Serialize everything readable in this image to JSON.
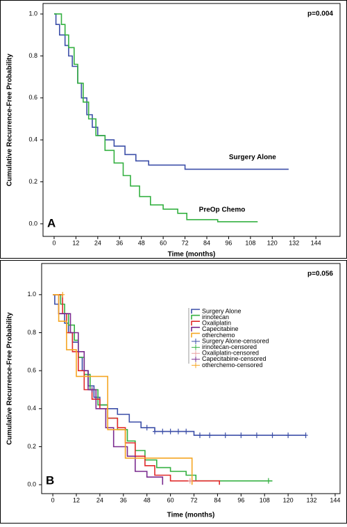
{
  "chart_data": [
    {
      "type": "line",
      "step": true,
      "panel_label": "A",
      "annotation": "p=0.004",
      "xlabel": "Time (months)",
      "ylabel": "Cumulative Recurrence-Free Probability",
      "xlim": [
        -6.1,
        157.3
      ],
      "ylim": [
        -0.06,
        1.05
      ],
      "xticks": [
        0,
        12,
        24,
        36,
        48,
        60,
        72,
        84,
        96,
        108,
        120,
        132,
        144
      ],
      "yticks": [
        {
          "value": 0,
          "label": "0.0"
        },
        0.2,
        0.4,
        0.6,
        0.8,
        {
          "value": 1,
          "label": "1.0"
        }
      ],
      "legend": false,
      "series_labels": true,
      "series": [
        {
          "name": "Surgery Alone",
          "color": "#3c4fa8",
          "x": [
            0,
            1,
            1,
            3,
            3,
            6,
            6,
            8,
            8,
            10,
            10,
            13,
            13,
            15,
            15,
            18,
            18,
            21,
            21,
            24,
            24,
            28,
            28,
            33,
            33,
            39,
            39,
            45,
            45,
            52,
            52,
            72,
            72,
            129
          ],
          "values": [
            1,
            1,
            0.95,
            0.95,
            0.9,
            0.9,
            0.85,
            0.85,
            0.8,
            0.8,
            0.75,
            0.75,
            0.67,
            0.67,
            0.6,
            0.6,
            0.52,
            0.52,
            0.46,
            0.46,
            0.42,
            0.42,
            0.4,
            0.4,
            0.37,
            0.37,
            0.33,
            0.33,
            0.3,
            0.3,
            0.28,
            0.28,
            0.26,
            0.26
          ]
        },
        {
          "name": "PreOp Chemo",
          "color": "#33b040",
          "x": [
            0,
            4,
            4,
            6,
            6,
            8,
            8,
            11,
            11,
            13,
            13,
            16,
            16,
            19,
            19,
            23,
            23,
            28,
            28,
            33,
            33,
            38,
            38,
            42,
            42,
            47,
            47,
            53,
            53,
            60,
            60,
            68,
            68,
            73,
            73,
            90,
            90,
            112
          ],
          "values": [
            1,
            1,
            0.95,
            0.95,
            0.9,
            0.9,
            0.84,
            0.84,
            0.76,
            0.76,
            0.67,
            0.67,
            0.58,
            0.58,
            0.5,
            0.5,
            0.42,
            0.42,
            0.35,
            0.35,
            0.29,
            0.29,
            0.23,
            0.23,
            0.18,
            0.18,
            0.13,
            0.13,
            0.09,
            0.09,
            0.07,
            0.07,
            0.05,
            0.05,
            0.02,
            0.02,
            0.01,
            0.01
          ]
        }
      ]
    },
    {
      "type": "line",
      "step": true,
      "panel_label": "B",
      "annotation": "p=0.056",
      "xlabel": "Time (months)",
      "ylabel": "Cumulative Recurrence-Free Probability",
      "xlim": [
        -5.7,
        146.5
      ],
      "ylim": [
        -0.047,
        1.164
      ],
      "xticks": [
        0,
        12,
        24,
        36,
        48,
        60,
        72,
        84,
        96,
        108,
        120,
        132,
        144
      ],
      "yticks": [
        {
          "value": 0,
          "label": "0.0"
        },
        0.2,
        0.4,
        0.6,
        0.8,
        {
          "value": 1,
          "label": "1.0"
        }
      ],
      "legend": true,
      "series_labels": false,
      "series": [
        {
          "name": "Surgery Alone",
          "color": "#3c4fa8",
          "x": [
            0,
            1,
            1,
            3,
            3,
            6,
            6,
            8,
            8,
            10,
            10,
            13,
            13,
            15,
            15,
            18,
            18,
            21,
            21,
            24,
            24,
            28,
            28,
            33,
            33,
            39,
            39,
            45,
            45,
            52,
            52,
            72,
            72,
            129
          ],
          "values": [
            1,
            1,
            0.95,
            0.95,
            0.9,
            0.9,
            0.85,
            0.85,
            0.8,
            0.8,
            0.75,
            0.75,
            0.67,
            0.67,
            0.6,
            0.6,
            0.52,
            0.52,
            0.46,
            0.46,
            0.42,
            0.42,
            0.4,
            0.4,
            0.37,
            0.37,
            0.33,
            0.33,
            0.3,
            0.3,
            0.28,
            0.28,
            0.26,
            0.26
          ]
        },
        {
          "name": "irinotecan",
          "color": "#33b040",
          "x": [
            0,
            4,
            4,
            6,
            6,
            8,
            8,
            11,
            11,
            13,
            13,
            16,
            16,
            19,
            19,
            23,
            23,
            28,
            28,
            33,
            33,
            38,
            38,
            42,
            42,
            47,
            47,
            53,
            53,
            60,
            60,
            68,
            68,
            73,
            73,
            112
          ],
          "values": [
            1,
            1,
            0.95,
            0.95,
            0.9,
            0.9,
            0.84,
            0.84,
            0.76,
            0.76,
            0.67,
            0.67,
            0.58,
            0.58,
            0.5,
            0.5,
            0.42,
            0.42,
            0.35,
            0.35,
            0.29,
            0.29,
            0.23,
            0.23,
            0.18,
            0.18,
            0.13,
            0.13,
            0.09,
            0.09,
            0.07,
            0.07,
            0.05,
            0.05,
            0.02,
            0.02
          ]
        },
        {
          "name": "Oxaliplatin",
          "color": "#e02a2a",
          "x": [
            0,
            5,
            5,
            7,
            7,
            10,
            10,
            13,
            13,
            16,
            16,
            20,
            20,
            24,
            24,
            28,
            28,
            33,
            33,
            37,
            37,
            42,
            42,
            47,
            47,
            52,
            52,
            60,
            60,
            85,
            85
          ],
          "values": [
            1,
            1,
            0.9,
            0.9,
            0.8,
            0.8,
            0.7,
            0.7,
            0.6,
            0.6,
            0.5,
            0.5,
            0.45,
            0.45,
            0.4,
            0.4,
            0.35,
            0.35,
            0.3,
            0.3,
            0.22,
            0.22,
            0.15,
            0.15,
            0.1,
            0.1,
            0.05,
            0.05,
            0.02,
            0.02,
            0
          ]
        },
        {
          "name": "Capecitabine",
          "color": "#7a2b8f",
          "x": [
            0,
            3,
            3,
            9,
            9,
            13,
            13,
            16,
            16,
            18,
            18,
            22,
            22,
            27,
            27,
            31,
            31,
            38,
            38,
            42,
            42,
            48,
            48,
            56,
            56
          ],
          "values": [
            1,
            1,
            0.9,
            0.9,
            0.8,
            0.8,
            0.7,
            0.7,
            0.6,
            0.6,
            0.5,
            0.5,
            0.4,
            0.4,
            0.3,
            0.3,
            0.2,
            0.2,
            0.15,
            0.15,
            0.07,
            0.07,
            0.04,
            0.04,
            0
          ]
        },
        {
          "name": "otherchemo",
          "color": "#f5a623",
          "x": [
            0,
            3,
            3,
            7,
            7,
            12,
            12,
            28,
            28,
            37,
            37,
            71,
            71
          ],
          "values": [
            1,
            1,
            0.86,
            0.86,
            0.71,
            0.71,
            0.57,
            0.57,
            0.29,
            0.29,
            0.14,
            0.14,
            0
          ]
        },
        {
          "name": "Surgery Alone-censored",
          "color": "#3c4fa8",
          "marker": "censor",
          "x": [
            48,
            52,
            56,
            60,
            64,
            68,
            75,
            80,
            88,
            96,
            104,
            112,
            120,
            129
          ],
          "values": [
            0.3,
            0.28,
            0.28,
            0.28,
            0.28,
            0.28,
            0.26,
            0.26,
            0.26,
            0.26,
            0.26,
            0.26,
            0.26,
            0.26
          ]
        },
        {
          "name": "irinotecan-censored",
          "color": "#33b040",
          "marker": "censor",
          "x": [
            110
          ],
          "values": [
            0.02
          ]
        },
        {
          "name": "Oxaliplatin-censored",
          "color": "#e8a0a0",
          "marker": "censor",
          "x": [
            70
          ],
          "values": [
            0.02
          ]
        },
        {
          "name": "Capecitabine-censored",
          "color": "#7a2b8f",
          "marker": "censor",
          "x": [
            20
          ],
          "values": [
            0.5
          ]
        },
        {
          "name": "otherchemo-censored",
          "color": "#f5a623",
          "marker": "censor",
          "x": [
            5
          ],
          "values": [
            1
          ]
        }
      ]
    }
  ]
}
